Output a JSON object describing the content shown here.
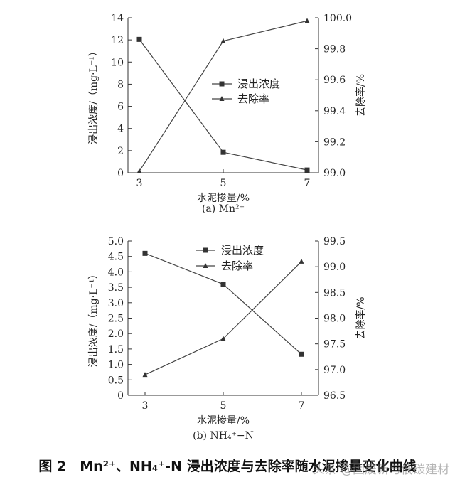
{
  "figure_caption": "图 2　Mn²⁺、NH₄⁺-N 浸出浓度与去除率随水泥掺量变化曲线",
  "watermark": "头条 @固废新与低碳建材",
  "chart_data": [
    {
      "type": "line",
      "subcaption": "(a)  Mn²⁺",
      "xlabel": "水泥掺量/%",
      "ylabel_left": "浸出浓度/（mg·L⁻¹）",
      "ylabel_right": "去除率/%",
      "x": [
        3,
        5,
        7
      ],
      "x_ticks": [
        "3",
        "5",
        "7"
      ],
      "ylim_left": [
        0,
        14
      ],
      "yticks_left": [
        "0",
        "2",
        "4",
        "6",
        "8",
        "10",
        "12",
        "14"
      ],
      "ylim_right": [
        99.0,
        100.0
      ],
      "yticks_right": [
        "99.0",
        "99.2",
        "99.4",
        "99.6",
        "99.8",
        "100.0"
      ],
      "legend_position": "center-right",
      "grid": false,
      "series": [
        {
          "name": "浸出浓度",
          "axis": "left",
          "marker": "square",
          "values": [
            12.05,
            1.85,
            0.25
          ]
        },
        {
          "name": "去除率",
          "axis": "right",
          "marker": "triangle",
          "values": [
            99.01,
            99.85,
            99.98
          ]
        }
      ]
    },
    {
      "type": "line",
      "subcaption": "(b)  NH₄⁺−N",
      "xlabel": "水泥掺量/%",
      "ylabel_left": "浸出浓度/（mg·L⁻¹）",
      "ylabel_right": "去除率/%",
      "x": [
        3,
        5,
        7
      ],
      "x_ticks": [
        "3",
        "5",
        "7"
      ],
      "ylim_left": [
        0,
        5.0
      ],
      "yticks_left": [
        "0",
        "0.5",
        "1.0",
        "1.5",
        "2.0",
        "2.5",
        "3.0",
        "3.5",
        "4.0",
        "4.5",
        "5.0"
      ],
      "ylim_right": [
        96.5,
        99.5
      ],
      "yticks_right": [
        "96.5",
        "97.0",
        "97.5",
        "98.0",
        "98.5",
        "99.0",
        "99.5"
      ],
      "legend_position": "top-center",
      "grid": false,
      "series": [
        {
          "name": "浸出浓度",
          "axis": "left",
          "marker": "square",
          "values": [
            4.6,
            3.6,
            1.33
          ]
        },
        {
          "name": "去除率",
          "axis": "right",
          "marker": "triangle",
          "values": [
            96.9,
            97.6,
            99.1
          ]
        }
      ]
    }
  ]
}
